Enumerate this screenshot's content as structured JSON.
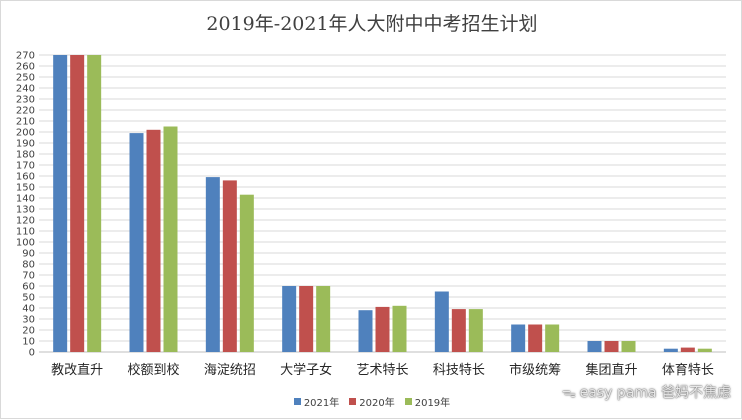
{
  "chart_data": {
    "type": "bar",
    "title": "2019年-2021年人大附中中考招生计划",
    "categories": [
      "教改直升",
      "校额到校",
      "海淀统招",
      "大学子女",
      "艺术特长",
      "科技特长",
      "市级统筹",
      "集团直升",
      "体育特长"
    ],
    "series": [
      {
        "name": "2021年",
        "color": "#4f81bd",
        "values": [
          270,
          199,
          159,
          60,
          38,
          55,
          25,
          10,
          3
        ]
      },
      {
        "name": "2020年",
        "color": "#c0504d",
        "values": [
          270,
          202,
          156,
          60,
          41,
          39,
          25,
          10,
          4
        ]
      },
      {
        "name": "2019年",
        "color": "#9bbb59",
        "values": [
          270,
          205,
          143,
          60,
          42,
          39,
          25,
          10,
          3
        ]
      }
    ],
    "ylim": [
      0,
      270
    ],
    "ytick_step": 10,
    "grid": true,
    "legend": "bottom"
  },
  "watermark": {
    "text": "easy pama 爸妈不焦虑",
    "icon": "wechat-bubble-icon"
  }
}
